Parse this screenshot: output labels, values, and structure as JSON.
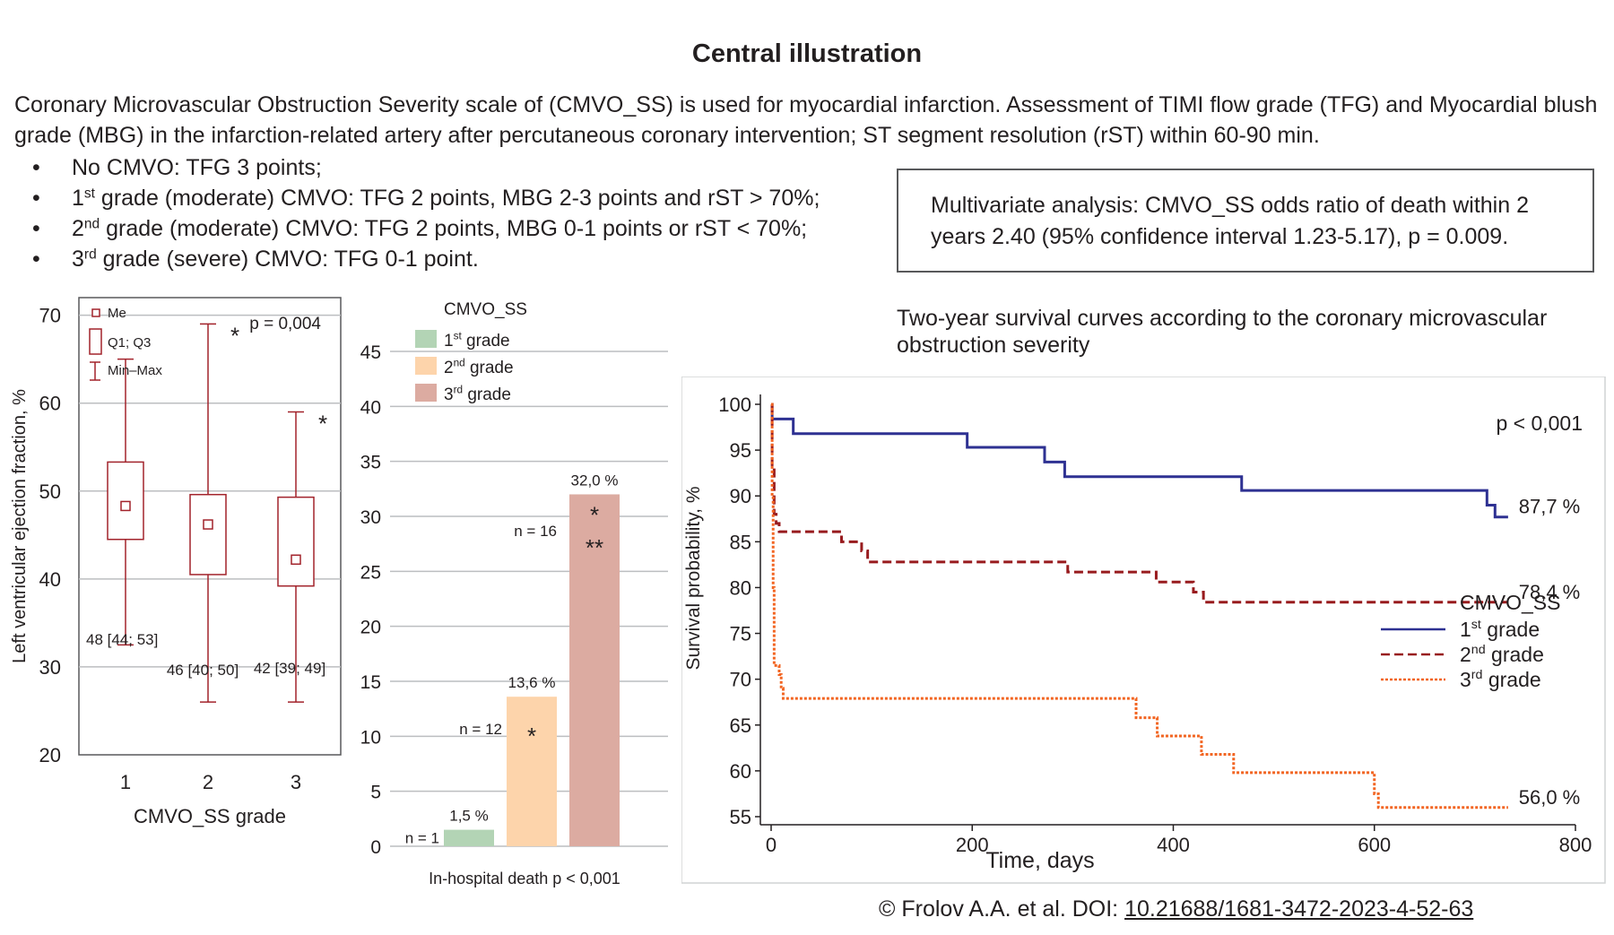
{
  "title": "Central illustration",
  "intro": "Coronary Microvascular Obstruction Severity scale of (CMVO_SS) is used for myocardial infarction. Assessment of TIMI flow grade (TFG) and Myocardial blush grade (MBG) in the infarction-related artery after percutaneous coronary intervention; ST segment resolution (rST) within 60-90 min.",
  "bullets": [
    {
      "bullet": "•",
      "pre": "No CMVO: TFG 3 points;",
      "sup": "",
      "post": ""
    },
    {
      "bullet": "•",
      "pre": "1",
      "sup": "st",
      "post": " grade (moderate) CMVO: TFG 2 points, MBG 2-3 points and rST > 70%;"
    },
    {
      "bullet": "•",
      "pre": "2",
      "sup": "nd",
      "post": " grade (moderate) CMVO: TFG 2 points, MBG 0-1 points or rST < 70%;"
    },
    {
      "bullet": "•",
      "pre": "3",
      "sup": "rd",
      "post": " grade (severe) CMVO: TFG 0-1 point."
    }
  ],
  "multivariate": "Multivariate analysis: CMVO_SS odds ratio of death within 2 years 2.40 (95% confidence interval 1.23-5.17), p = 0.009.",
  "survival_title": "Two-year survival curves according to the coronary microvascular obstruction severity",
  "credit": {
    "text": "© Frolov A.A. et al. DOI: ",
    "doi": "10.21688/1681-3472-2023-4-52-63"
  },
  "colors": {
    "box": "#a2232b",
    "bar1": "#b3d4b5",
    "bar2": "#fdd4ab",
    "bar3": "#dcaba1",
    "curve1": "#2e3192",
    "curve2": "#981b1e",
    "curve3": "#f26522",
    "grid": "#bcbec0",
    "text": "#231f20"
  },
  "chart_data": [
    {
      "type": "box",
      "title": "",
      "xlabel": "CMVO_SS grade",
      "ylabel": "Left ventricular ejection fraction, %",
      "ylim": [
        20,
        72
      ],
      "yticks": [
        20,
        30,
        40,
        50,
        60,
        70
      ],
      "categories": [
        "1",
        "2",
        "3"
      ],
      "boxes": [
        {
          "category": "1",
          "min": 32.5,
          "q1": 44.5,
          "median": 48.3,
          "q3": 53.3,
          "max": 65,
          "summary": "48 [44; 53]",
          "star": ""
        },
        {
          "category": "2",
          "min": 26,
          "q1": 40.5,
          "median": 46.2,
          "q3": 49.6,
          "max": 69,
          "summary": "46 [40; 50]",
          "star": "*"
        },
        {
          "category": "3",
          "min": 26,
          "q1": 39.2,
          "median": 42.2,
          "q3": 49.3,
          "max": 59,
          "summary": "42 [39; 49]",
          "star": "*"
        }
      ],
      "legend": [
        "Me",
        "Q1; Q3",
        "Min–Max"
      ],
      "annotation": "p = 0,004"
    },
    {
      "type": "bar",
      "title": "CMVO_SS",
      "xlabel": "In-hospital death  p < 0,001",
      "ylabel": "",
      "ylim": [
        0,
        45
      ],
      "yticks": [
        0,
        5,
        10,
        15,
        20,
        25,
        30,
        35,
        40,
        45
      ],
      "categories": [
        "1st grade",
        "2nd grade",
        "3rd grade"
      ],
      "legend": [
        {
          "num": "1",
          "sup": "st",
          "rest": " grade"
        },
        {
          "num": "2",
          "sup": "nd",
          "rest": " grade"
        },
        {
          "num": "3",
          "sup": "rd",
          "rest": " grade"
        }
      ],
      "values": [
        1.5,
        13.6,
        32.0
      ],
      "value_labels": [
        "1,5 %",
        "13,6 %",
        "32,0 %"
      ],
      "n_labels": [
        "n = 1",
        "n = 12",
        "n = 16"
      ],
      "stars": [
        "",
        "*",
        "*\n**"
      ]
    },
    {
      "type": "line",
      "title": "",
      "xlabel": "Time, days",
      "ylabel": "Survival probability, %",
      "xlim": [
        0,
        800
      ],
      "ylim": [
        55,
        100
      ],
      "xticks": [
        0,
        200,
        400,
        600,
        800
      ],
      "yticks": [
        55,
        60,
        65,
        70,
        75,
        80,
        85,
        90,
        95,
        100
      ],
      "legend_title": "CMVO_SS",
      "annotation": "p < 0,001",
      "series": [
        {
          "name": "1st grade",
          "num": "1",
          "sup": "st",
          "rest": " grade",
          "end_label": "87,7 %",
          "steps": [
            [
              0,
              100
            ],
            [
              1,
              98.4
            ],
            [
              22,
              96.8
            ],
            [
              195,
              95.3
            ],
            [
              272,
              93.7
            ],
            [
              292,
              92.1
            ],
            [
              468,
              90.6
            ],
            [
              712,
              89
            ],
            [
              720,
              87.7
            ],
            [
              733,
              87.7
            ]
          ]
        },
        {
          "name": "2nd grade",
          "num": "2",
          "sup": "nd",
          "rest": " grade",
          "end_label": "78,4 %",
          "steps": [
            [
              0,
              100
            ],
            [
              1,
              93
            ],
            [
              3,
              88
            ],
            [
              5,
              87
            ],
            [
              8,
              86.1
            ],
            [
              70,
              85
            ],
            [
              90,
              84
            ],
            [
              96,
              82.8
            ],
            [
              295,
              81.7
            ],
            [
              383,
              80.6
            ],
            [
              420,
              79.5
            ],
            [
              430,
              78.4
            ],
            [
              733,
              78.4
            ]
          ]
        },
        {
          "name": "3rd grade",
          "num": "3",
          "sup": "rd",
          "rest": " grade",
          "end_label": "56,0 %",
          "steps": [
            [
              0,
              100
            ],
            [
              1,
              90
            ],
            [
              2,
              80
            ],
            [
              3,
              71.5
            ],
            [
              8,
              70.5
            ],
            [
              10,
              69
            ],
            [
              12,
              67.9
            ],
            [
              363,
              65.8
            ],
            [
              384,
              63.8
            ],
            [
              428,
              61.8
            ],
            [
              460,
              59.8
            ],
            [
              600,
              57.5
            ],
            [
              604,
              56
            ],
            [
              733,
              56
            ]
          ]
        }
      ]
    }
  ]
}
